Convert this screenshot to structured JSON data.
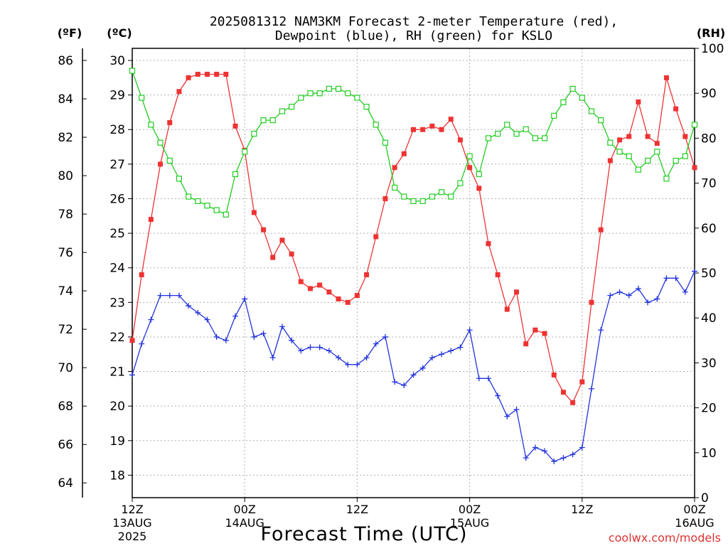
{
  "chart_data": {
    "type": "line",
    "title_line1": "2025081312 NAM3KM Forecast 2-meter Temperature (red),",
    "title_line2": "Dewpoint (blue), RH (green) for KSLO",
    "xlabel": "Forecast Time (UTC)",
    "watermark": "coolwx.com/models",
    "unit_f": "(ºF)",
    "unit_c": "(ºC)",
    "unit_rh": "(RH)",
    "x_ticks": [
      {
        "hour": 0,
        "label1": "12Z",
        "label2": "13AUG",
        "label3": "2025"
      },
      {
        "hour": 12,
        "label1": "00Z",
        "label2": "14AUG",
        "label3": ""
      },
      {
        "hour": 24,
        "label1": "12Z",
        "label2": "",
        "label3": ""
      },
      {
        "hour": 36,
        "label1": "00Z",
        "label2": "15AUG",
        "label3": ""
      },
      {
        "hour": 48,
        "label1": "12Z",
        "label2": "",
        "label3": ""
      },
      {
        "hour": 60,
        "label1": "00Z",
        "label2": "16AUG",
        "label3": ""
      }
    ],
    "xlim": [
      0,
      60
    ],
    "temp_c_axis": {
      "range": [
        17.35,
        30.35
      ],
      "ticks": [
        18,
        19,
        20,
        21,
        22,
        23,
        24,
        25,
        26,
        27,
        28,
        29,
        30
      ]
    },
    "temp_f_axis": {
      "ticks": [
        64,
        66,
        68,
        70,
        72,
        74,
        76,
        78,
        80,
        82,
        84,
        86
      ]
    },
    "rh_axis": {
      "range": [
        0,
        100
      ],
      "ticks": [
        0,
        10,
        20,
        30,
        40,
        50,
        60,
        70,
        80,
        90,
        100
      ]
    },
    "colors": {
      "temperature": "#ee3333",
      "dewpoint": "#2233dd",
      "rh": "#22cc22",
      "grid": "#b0b0b0"
    },
    "series": [
      {
        "key": "temperature",
        "unit": "C",
        "points": [
          [
            0,
            21.9
          ],
          [
            1,
            23.8
          ],
          [
            2,
            25.4
          ],
          [
            3,
            27.0
          ],
          [
            4,
            28.2
          ],
          [
            5,
            29.1
          ],
          [
            6,
            29.5
          ],
          [
            7,
            29.6
          ],
          [
            8,
            29.6
          ],
          [
            9,
            29.6
          ],
          [
            10,
            29.6
          ],
          [
            11,
            28.1
          ],
          [
            12,
            27.4
          ],
          [
            13,
            25.6
          ],
          [
            14,
            25.1
          ],
          [
            15,
            24.3
          ],
          [
            16,
            24.8
          ],
          [
            17,
            24.4
          ],
          [
            18,
            23.6
          ],
          [
            19,
            23.4
          ],
          [
            20,
            23.5
          ],
          [
            21,
            23.3
          ],
          [
            22,
            23.1
          ],
          [
            23,
            23.0
          ],
          [
            24,
            23.2
          ],
          [
            25,
            23.8
          ],
          [
            26,
            24.9
          ],
          [
            27,
            26.0
          ],
          [
            28,
            26.9
          ],
          [
            29,
            27.3
          ],
          [
            30,
            28.0
          ],
          [
            31,
            28.0
          ],
          [
            32,
            28.1
          ],
          [
            33,
            28.0
          ],
          [
            34,
            28.3
          ],
          [
            35,
            27.7
          ],
          [
            36,
            26.9
          ],
          [
            37,
            26.3
          ],
          [
            38,
            24.7
          ],
          [
            39,
            23.8
          ],
          [
            40,
            22.8
          ],
          [
            41,
            23.3
          ],
          [
            42,
            21.8
          ],
          [
            43,
            22.2
          ],
          [
            44,
            22.1
          ],
          [
            45,
            20.9
          ],
          [
            46,
            20.4
          ],
          [
            47,
            20.1
          ],
          [
            48,
            20.7
          ],
          [
            49,
            23.0
          ],
          [
            50,
            25.1
          ],
          [
            51,
            27.1
          ],
          [
            52,
            27.7
          ],
          [
            53,
            27.8
          ],
          [
            54,
            28.8
          ],
          [
            55,
            27.8
          ],
          [
            56,
            27.6
          ],
          [
            57,
            29.5
          ],
          [
            58,
            28.6
          ],
          [
            59,
            27.8
          ],
          [
            60,
            26.9
          ]
        ]
      },
      {
        "key": "dewpoint",
        "unit": "C",
        "points": [
          [
            0,
            20.9
          ],
          [
            1,
            21.8
          ],
          [
            2,
            22.5
          ],
          [
            3,
            23.2
          ],
          [
            4,
            23.2
          ],
          [
            5,
            23.2
          ],
          [
            6,
            22.9
          ],
          [
            7,
            22.7
          ],
          [
            8,
            22.5
          ],
          [
            9,
            22.0
          ],
          [
            10,
            21.9
          ],
          [
            11,
            22.6
          ],
          [
            12,
            23.1
          ],
          [
            13,
            22.0
          ],
          [
            14,
            22.1
          ],
          [
            15,
            21.4
          ],
          [
            16,
            22.3
          ],
          [
            17,
            21.9
          ],
          [
            18,
            21.6
          ],
          [
            19,
            21.7
          ],
          [
            20,
            21.7
          ],
          [
            21,
            21.6
          ],
          [
            22,
            21.4
          ],
          [
            23,
            21.2
          ],
          [
            24,
            21.2
          ],
          [
            25,
            21.4
          ],
          [
            26,
            21.8
          ],
          [
            27,
            22.0
          ],
          [
            28,
            20.7
          ],
          [
            29,
            20.6
          ],
          [
            30,
            20.9
          ],
          [
            31,
            21.1
          ],
          [
            32,
            21.4
          ],
          [
            33,
            21.5
          ],
          [
            34,
            21.6
          ],
          [
            35,
            21.7
          ],
          [
            36,
            22.2
          ],
          [
            37,
            20.8
          ],
          [
            38,
            20.8
          ],
          [
            39,
            20.3
          ],
          [
            40,
            19.7
          ],
          [
            41,
            19.9
          ],
          [
            42,
            18.5
          ],
          [
            43,
            18.8
          ],
          [
            44,
            18.7
          ],
          [
            45,
            18.4
          ],
          [
            46,
            18.5
          ],
          [
            47,
            18.6
          ],
          [
            48,
            18.8
          ],
          [
            49,
            20.5
          ],
          [
            50,
            22.2
          ],
          [
            51,
            23.2
          ],
          [
            52,
            23.3
          ],
          [
            53,
            23.2
          ],
          [
            54,
            23.4
          ],
          [
            55,
            23.0
          ],
          [
            56,
            23.1
          ],
          [
            57,
            23.7
          ],
          [
            58,
            23.7
          ],
          [
            59,
            23.3
          ],
          [
            60,
            23.9
          ]
        ]
      },
      {
        "key": "rh",
        "unit": "%",
        "points": [
          [
            0,
            95
          ],
          [
            1,
            89
          ],
          [
            2,
            83
          ],
          [
            3,
            79
          ],
          [
            4,
            75
          ],
          [
            5,
            71
          ],
          [
            6,
            67
          ],
          [
            7,
            66
          ],
          [
            8,
            65
          ],
          [
            9,
            64
          ],
          [
            10,
            63
          ],
          [
            11,
            72
          ],
          [
            12,
            77
          ],
          [
            13,
            81
          ],
          [
            14,
            84
          ],
          [
            15,
            84
          ],
          [
            16,
            86
          ],
          [
            17,
            87
          ],
          [
            18,
            89
          ],
          [
            19,
            90
          ],
          [
            20,
            90
          ],
          [
            21,
            91
          ],
          [
            22,
            91
          ],
          [
            23,
            90
          ],
          [
            24,
            89
          ],
          [
            25,
            87
          ],
          [
            26,
            83
          ],
          [
            27,
            79
          ],
          [
            28,
            69
          ],
          [
            29,
            67
          ],
          [
            30,
            66
          ],
          [
            31,
            66
          ],
          [
            32,
            67
          ],
          [
            33,
            68
          ],
          [
            34,
            67
          ],
          [
            35,
            70
          ],
          [
            36,
            76
          ],
          [
            37,
            72
          ],
          [
            38,
            80
          ],
          [
            39,
            81
          ],
          [
            40,
            83
          ],
          [
            41,
            81
          ],
          [
            42,
            82
          ],
          [
            43,
            80
          ],
          [
            44,
            80
          ],
          [
            45,
            85
          ],
          [
            46,
            88
          ],
          [
            47,
            91
          ],
          [
            48,
            89
          ],
          [
            49,
            86
          ],
          [
            50,
            84
          ],
          [
            51,
            79
          ],
          [
            52,
            77
          ],
          [
            53,
            76
          ],
          [
            54,
            73
          ],
          [
            55,
            75
          ],
          [
            56,
            77
          ],
          [
            57,
            71
          ],
          [
            58,
            75
          ],
          [
            59,
            76
          ],
          [
            60,
            83
          ]
        ]
      }
    ]
  }
}
